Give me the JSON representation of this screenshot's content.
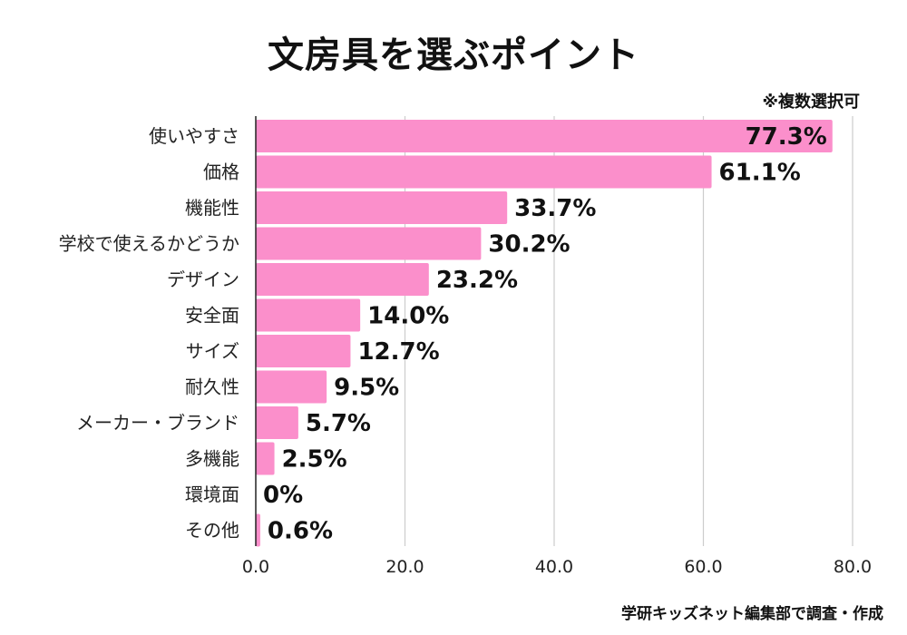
{
  "chart_data": {
    "type": "bar",
    "orientation": "horizontal",
    "title": "文房具を選ぶポイント",
    "note": "※複数選択可",
    "source": "学研キッズネット編集部で調査・作成",
    "categories": [
      "使いやすさ",
      "価格",
      "機能性",
      "学校で使えるかどうか",
      "デザイン",
      "安全面",
      "サイズ",
      "耐久性",
      "メーカー・ブランド",
      "多機能",
      "環境面",
      "その他"
    ],
    "values": [
      77.3,
      61.1,
      33.7,
      30.2,
      23.2,
      14.0,
      12.7,
      9.5,
      5.7,
      2.5,
      0,
      0.6
    ],
    "value_labels": [
      "77.3%",
      "61.1%",
      "33.7%",
      "30.2%",
      "23.2%",
      "14.0%",
      "12.7%",
      "9.5%",
      "5.7%",
      "2.5%",
      "0%",
      "0.6%"
    ],
    "xticks": [
      0,
      20,
      40,
      60,
      80
    ],
    "xtick_labels": [
      "0.0",
      "20.0",
      "40.0",
      "60.0",
      "80.0"
    ],
    "xlim": [
      0,
      80
    ],
    "grid": true,
    "colors": {
      "bar": "#fb8fcb",
      "grid": "#cccccc",
      "axis": "#222222"
    }
  }
}
